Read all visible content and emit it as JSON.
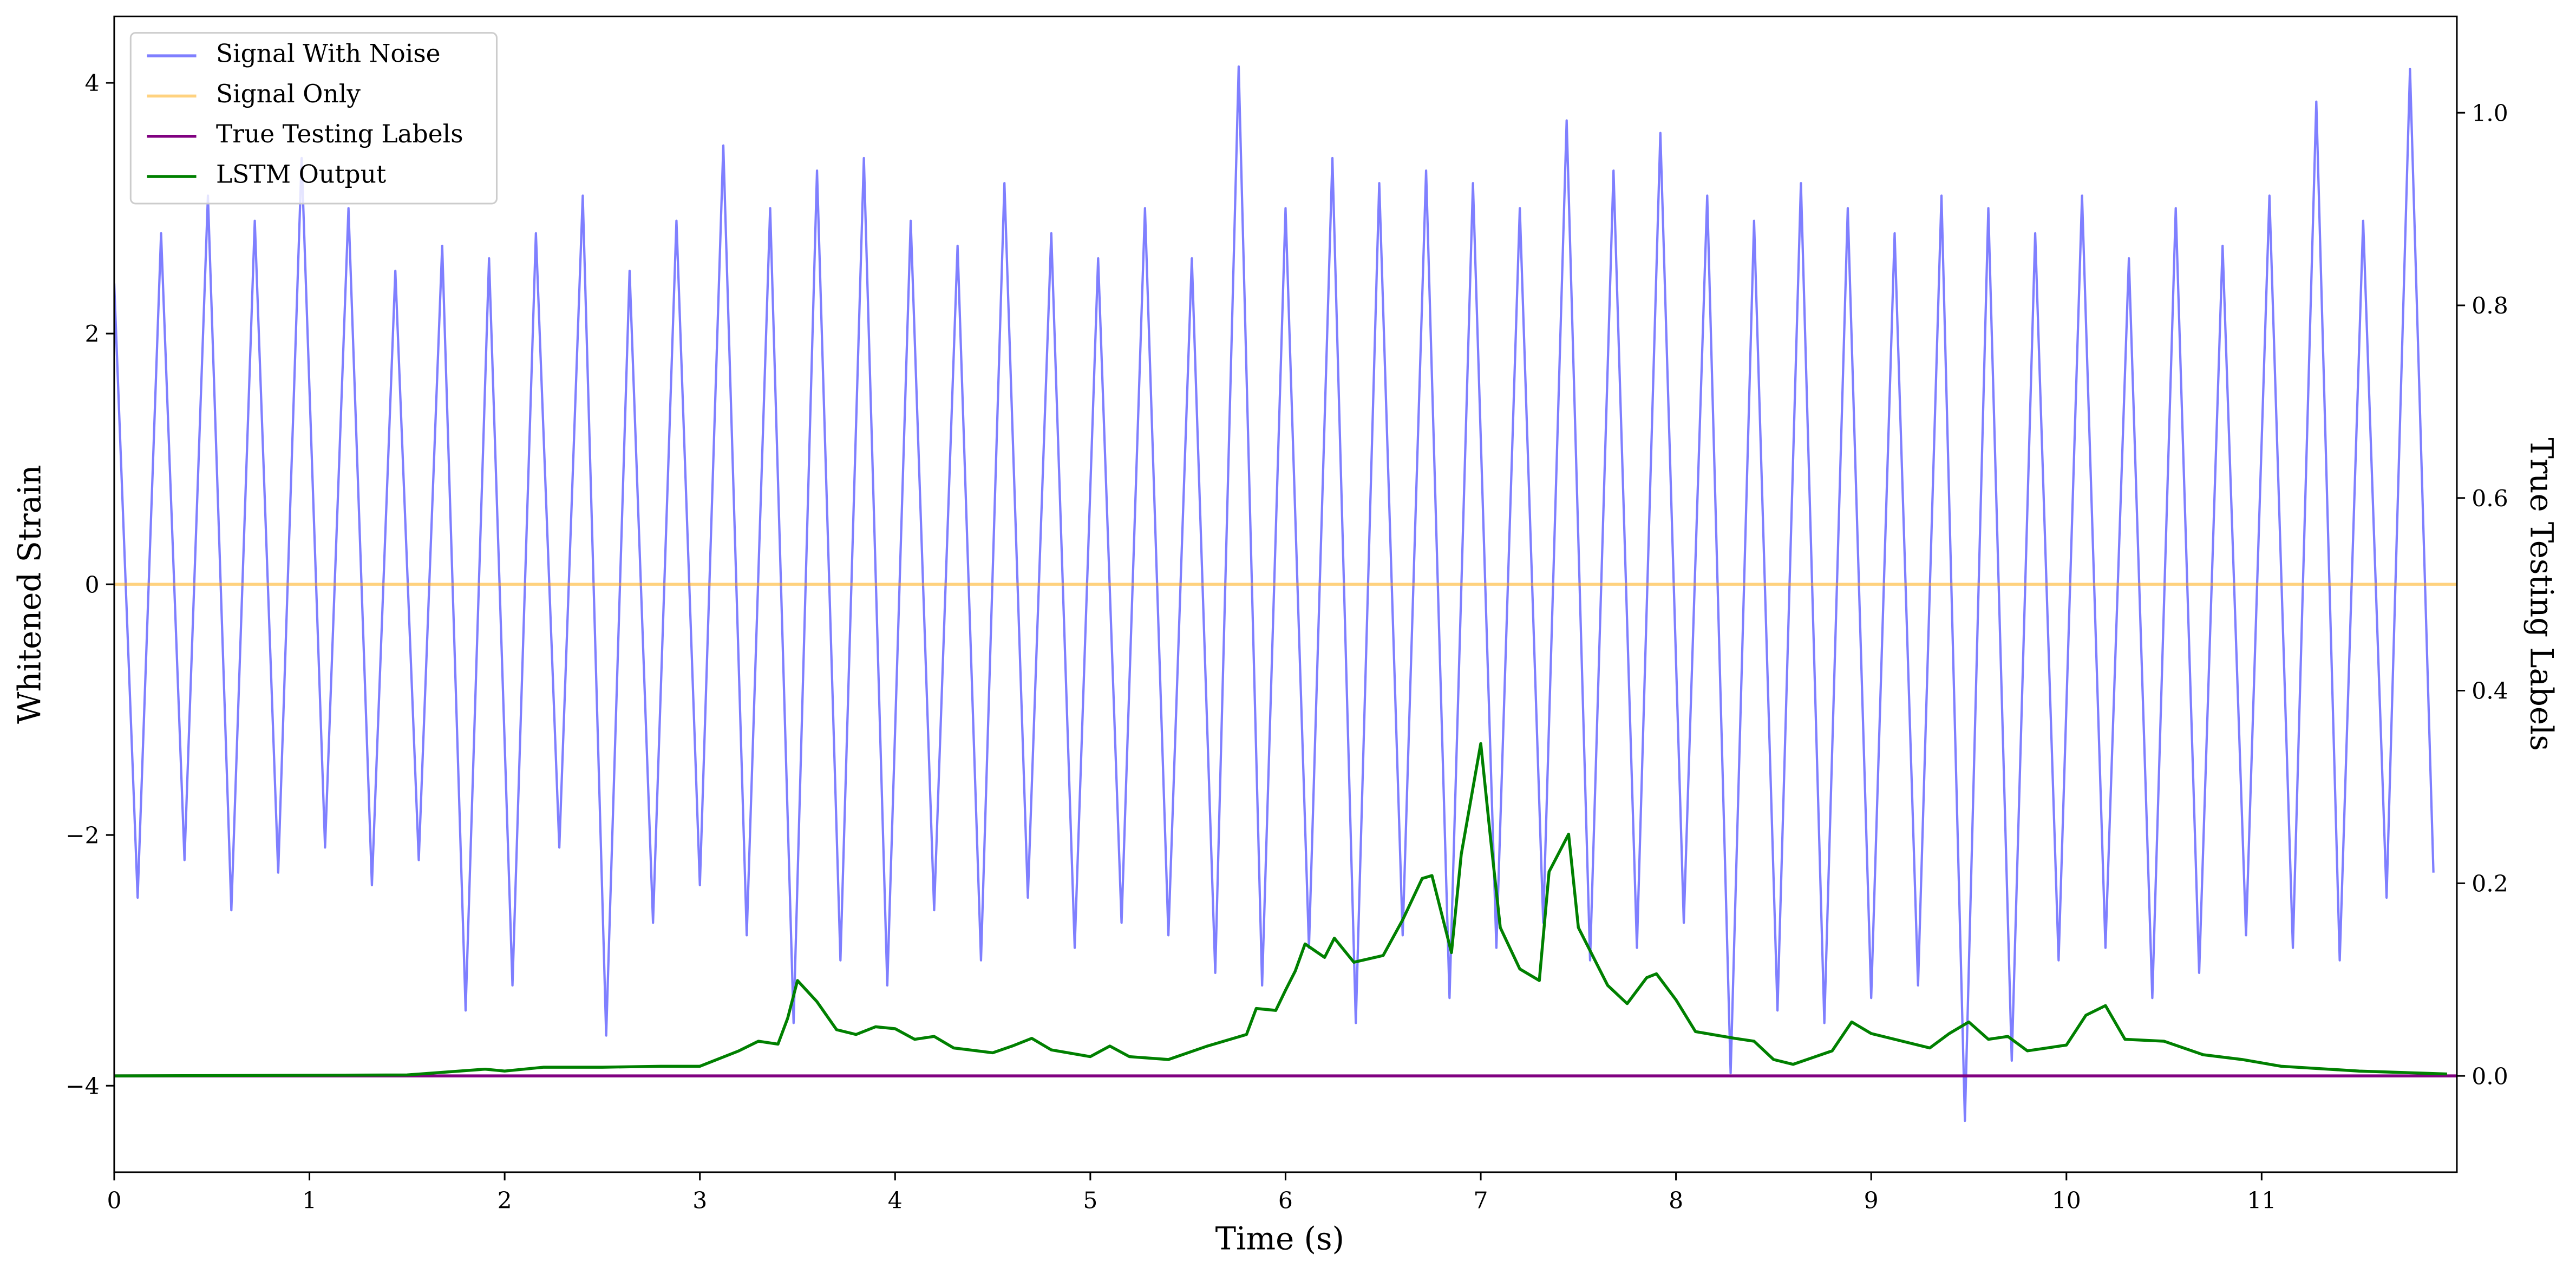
{
  "chart_data": {
    "type": "line",
    "xlabel": "Time (s)",
    "ylabel": "Whitened Strain",
    "y2label": "True Testing Labels",
    "xlim": [
      0,
      12
    ],
    "xticks": [
      0,
      1,
      2,
      3,
      4,
      5,
      6,
      7,
      8,
      9,
      10,
      11
    ],
    "ylim": [
      -4.69,
      4.53
    ],
    "yticks": [
      {
        "value": -4,
        "label": "−4"
      },
      {
        "value": -2,
        "label": "−2"
      },
      0,
      2,
      4
    ],
    "y2lim": [
      -0.1,
      1.1
    ],
    "y2ticks": [
      {
        "value": 0,
        "label": "0.0"
      },
      0.2,
      0.4,
      0.6,
      0.8,
      {
        "value": 1,
        "label": "1.0"
      }
    ],
    "legend": "upper left",
    "series": [
      {
        "name": "Signal With Noise",
        "color": "#0000ff",
        "opacity": 0.5,
        "axis": "y",
        "x": [
          0,
          0.12,
          0.24,
          0.36,
          0.48,
          0.6,
          0.72,
          0.84,
          0.96,
          1.08,
          1.2,
          1.32,
          1.44,
          1.56,
          1.68,
          1.8,
          1.92,
          2.04,
          2.16,
          2.28,
          2.4,
          2.52,
          2.64,
          2.76,
          2.88,
          3,
          3.12,
          3.24,
          3.36,
          3.48,
          3.6,
          3.72,
          3.84,
          3.96,
          4.08,
          4.2,
          4.32,
          4.44,
          4.56,
          4.68,
          4.8,
          4.92,
          5.04,
          5.16,
          5.28,
          5.4,
          5.52,
          5.64,
          5.76,
          5.88,
          6,
          6.12,
          6.24,
          6.36,
          6.48,
          6.6,
          6.72,
          6.84,
          6.96,
          7.08,
          7.2,
          7.32,
          7.44,
          7.56,
          7.68,
          7.8,
          7.92,
          8.04,
          8.16,
          8.28,
          8.4,
          8.52,
          8.64,
          8.76,
          8.88,
          9,
          9.12,
          9.24,
          9.36,
          9.48,
          9.6,
          9.72,
          9.84,
          9.96,
          10.08,
          10.2,
          10.32,
          10.44,
          10.56,
          10.68,
          10.8,
          10.92,
          11.04,
          11.16,
          11.28,
          11.4,
          11.52,
          11.64,
          11.76,
          11.88
        ],
        "values": [
          2.4,
          -2.5,
          2.8,
          -2.2,
          3.1,
          -2.6,
          2.9,
          -2.3,
          3.4,
          -2.1,
          3.0,
          -2.4,
          2.5,
          -2.2,
          2.7,
          -3.4,
          2.6,
          -3.2,
          2.8,
          -2.1,
          3.1,
          -3.6,
          2.5,
          -2.7,
          2.9,
          -2.4,
          3.5,
          -2.8,
          3.0,
          -3.5,
          3.3,
          -3.0,
          3.4,
          -3.2,
          2.9,
          -2.6,
          2.7,
          -3.0,
          3.2,
          -2.5,
          2.8,
          -2.9,
          2.6,
          -2.7,
          3.0,
          -2.8,
          2.6,
          -3.1,
          4.13,
          -3.2,
          3.0,
          -2.9,
          3.4,
          -3.5,
          3.2,
          -2.8,
          3.3,
          -3.3,
          3.2,
          -2.9,
          3.0,
          -2.7,
          3.7,
          -3.0,
          3.3,
          -2.9,
          3.6,
          -2.7,
          3.1,
          -3.9,
          2.9,
          -3.4,
          3.2,
          -3.5,
          3.0,
          -3.3,
          2.8,
          -3.2,
          3.1,
          -4.28,
          3.0,
          -3.8,
          2.8,
          -3.0,
          3.1,
          -2.9,
          2.6,
          -3.3,
          3.0,
          -3.1,
          2.7,
          -2.8,
          3.1,
          -2.9,
          3.85,
          -3.0,
          2.9,
          -2.5,
          4.11,
          -2.3
        ]
      },
      {
        "name": "Signal Only",
        "color": "#ffa500",
        "opacity": 0.5,
        "axis": "y",
        "x": [
          0,
          12
        ],
        "values": [
          0,
          0
        ]
      },
      {
        "name": "True Testing Labels",
        "color": "#800080",
        "opacity": 1,
        "axis": "y2",
        "x": [
          0,
          12
        ],
        "values": [
          0,
          0
        ]
      },
      {
        "name": "LSTM Output",
        "color": "#008000",
        "opacity": 1,
        "axis": "y2",
        "x": [
          0,
          1.5,
          1.9,
          2.0,
          2.2,
          2.5,
          2.8,
          3.0,
          3.2,
          3.3,
          3.4,
          3.45,
          3.5,
          3.6,
          3.7,
          3.8,
          3.9,
          4.0,
          4.1,
          4.2,
          4.3,
          4.5,
          4.6,
          4.7,
          4.8,
          5.0,
          5.1,
          5.2,
          5.4,
          5.5,
          5.6,
          5.8,
          5.85,
          5.95,
          6.0,
          6.05,
          6.1,
          6.2,
          6.25,
          6.35,
          6.5,
          6.6,
          6.7,
          6.75,
          6.85,
          6.9,
          7.0,
          7.05,
          7.1,
          7.2,
          7.3,
          7.35,
          7.45,
          7.5,
          7.65,
          7.75,
          7.85,
          7.9,
          8.0,
          8.1,
          8.3,
          8.4,
          8.5,
          8.6,
          8.7,
          8.8,
          8.9,
          9.0,
          9.2,
          9.3,
          9.4,
          9.5,
          9.6,
          9.7,
          9.8,
          9.9,
          10.0,
          10.1,
          10.2,
          10.3,
          10.5,
          10.7,
          10.9,
          11.1,
          11.5,
          11.95
        ],
        "values": [
          0,
          0.001,
          0.007,
          0.005,
          0.009,
          0.009,
          0.01,
          0.01,
          0.026,
          0.036,
          0.033,
          0.06,
          0.099,
          0.077,
          0.048,
          0.043,
          0.051,
          0.049,
          0.038,
          0.041,
          0.029,
          0.024,
          0.031,
          0.039,
          0.027,
          0.02,
          0.031,
          0.02,
          0.017,
          0.024,
          0.031,
          0.043,
          0.07,
          0.068,
          0.089,
          0.109,
          0.137,
          0.123,
          0.143,
          0.118,
          0.125,
          0.162,
          0.205,
          0.208,
          0.128,
          0.23,
          0.345,
          0.247,
          0.154,
          0.111,
          0.099,
          0.212,
          0.251,
          0.154,
          0.094,
          0.075,
          0.102,
          0.106,
          0.079,
          0.046,
          0.039,
          0.036,
          0.017,
          0.012,
          0.019,
          0.026,
          0.056,
          0.044,
          0.034,
          0.029,
          0.044,
          0.056,
          0.038,
          0.041,
          0.026,
          0.029,
          0.032,
          0.063,
          0.073,
          0.038,
          0.036,
          0.022,
          0.017,
          0.01,
          0.005,
          0.002
        ]
      }
    ]
  }
}
